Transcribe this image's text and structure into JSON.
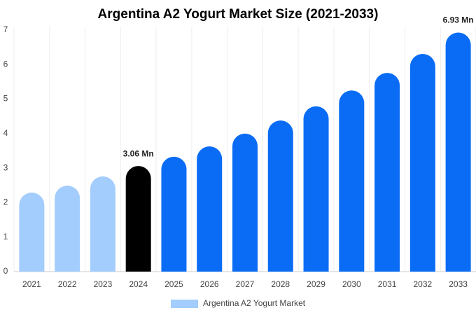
{
  "chart_data": {
    "type": "bar",
    "title": "Argentina A2 Yogurt Market Size (2021-2033)",
    "categories": [
      "2021",
      "2022",
      "2023",
      "2024",
      "2025",
      "2026",
      "2027",
      "2028",
      "2029",
      "2030",
      "2031",
      "2032",
      "2033"
    ],
    "series": [
      {
        "name": "Argentina A2 Yogurt Market",
        "color": "#a3cdfc",
        "values": [
          2.29,
          2.49,
          2.76,
          3.06,
          3.33,
          3.63,
          4.0,
          4.38,
          4.79,
          5.25,
          5.76,
          6.31,
          6.93
        ],
        "value_labels": [
          null,
          null,
          null,
          "3.06 Mn",
          null,
          null,
          null,
          null,
          null,
          null,
          null,
          null,
          "6.93 Mn"
        ],
        "bar_colors": [
          "#a3cdfc",
          "#a3cdfc",
          "#a3cdfc",
          "#000000",
          "#0a6cf5",
          "#0a6cf5",
          "#0a6cf5",
          "#0a6cf5",
          "#0a6cf5",
          "#0a6cf5",
          "#0a6cf5",
          "#0a6cf5",
          "#0a6cf5"
        ]
      }
    ],
    "ylim": [
      0,
      7
    ],
    "yticks": [
      0,
      1,
      2,
      3,
      4,
      5,
      6,
      7
    ]
  }
}
